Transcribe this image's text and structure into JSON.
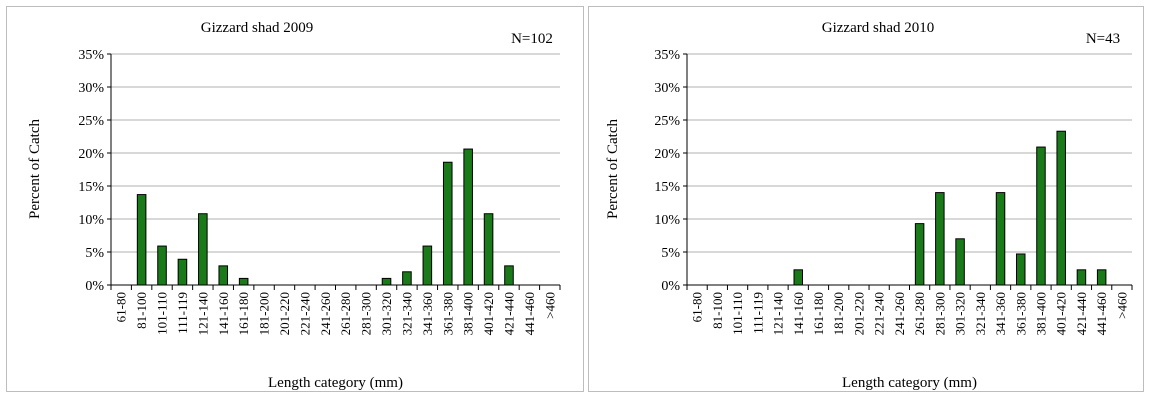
{
  "chart_data": [
    {
      "type": "bar",
      "title": "Gizzard shad 2009",
      "annotation": "N=102",
      "xlabel": "Length category (mm)",
      "ylabel": "Percent of Catch",
      "ylim": [
        0,
        35
      ],
      "yticks": [
        "0%",
        "5%",
        "10%",
        "15%",
        "20%",
        "25%",
        "30%",
        "35%"
      ],
      "grid": true,
      "categories": [
        "61-80",
        "81-100",
        "101-110",
        "111-119",
        "121-140",
        "141-160",
        "161-180",
        "181-200",
        "201-220",
        "221-240",
        "241-260",
        "261-280",
        "281-300",
        "301-320",
        "321-340",
        "341-360",
        "361-380",
        "381-400",
        "401-420",
        "421-440",
        "441-460",
        ">460"
      ],
      "values": [
        0,
        13.7,
        5.9,
        3.9,
        10.8,
        2.9,
        1.0,
        0,
        0,
        0,
        0,
        0,
        0,
        1.0,
        2.0,
        5.9,
        18.6,
        20.6,
        10.8,
        2.9,
        0,
        0
      ]
    },
    {
      "type": "bar",
      "title": "Gizzard shad 2010",
      "annotation": "N=43",
      "xlabel": "Length category (mm)",
      "ylabel": "Percent of Catch",
      "ylim": [
        0,
        35
      ],
      "yticks": [
        "0%",
        "5%",
        "10%",
        "15%",
        "20%",
        "25%",
        "30%",
        "35%"
      ],
      "grid": true,
      "categories": [
        "61-80",
        "81-100",
        "101-110",
        "111-119",
        "121-140",
        "141-160",
        "161-180",
        "181-200",
        "201-220",
        "221-240",
        "241-260",
        "261-280",
        "281-300",
        "301-320",
        "321-340",
        "341-360",
        "361-380",
        "381-400",
        "401-420",
        "421-440",
        "441-460",
        ">460"
      ],
      "values": [
        0,
        0,
        0,
        0,
        0,
        2.3,
        0,
        0,
        0,
        0,
        0,
        9.3,
        14.0,
        7.0,
        0,
        14.0,
        4.7,
        20.9,
        23.3,
        2.3,
        2.3,
        0
      ]
    }
  ],
  "colors": {
    "bar_fill": "#1a7a1a",
    "bar_stroke": "#000000",
    "grid": "#b0b0b0",
    "axis": "#000000"
  }
}
